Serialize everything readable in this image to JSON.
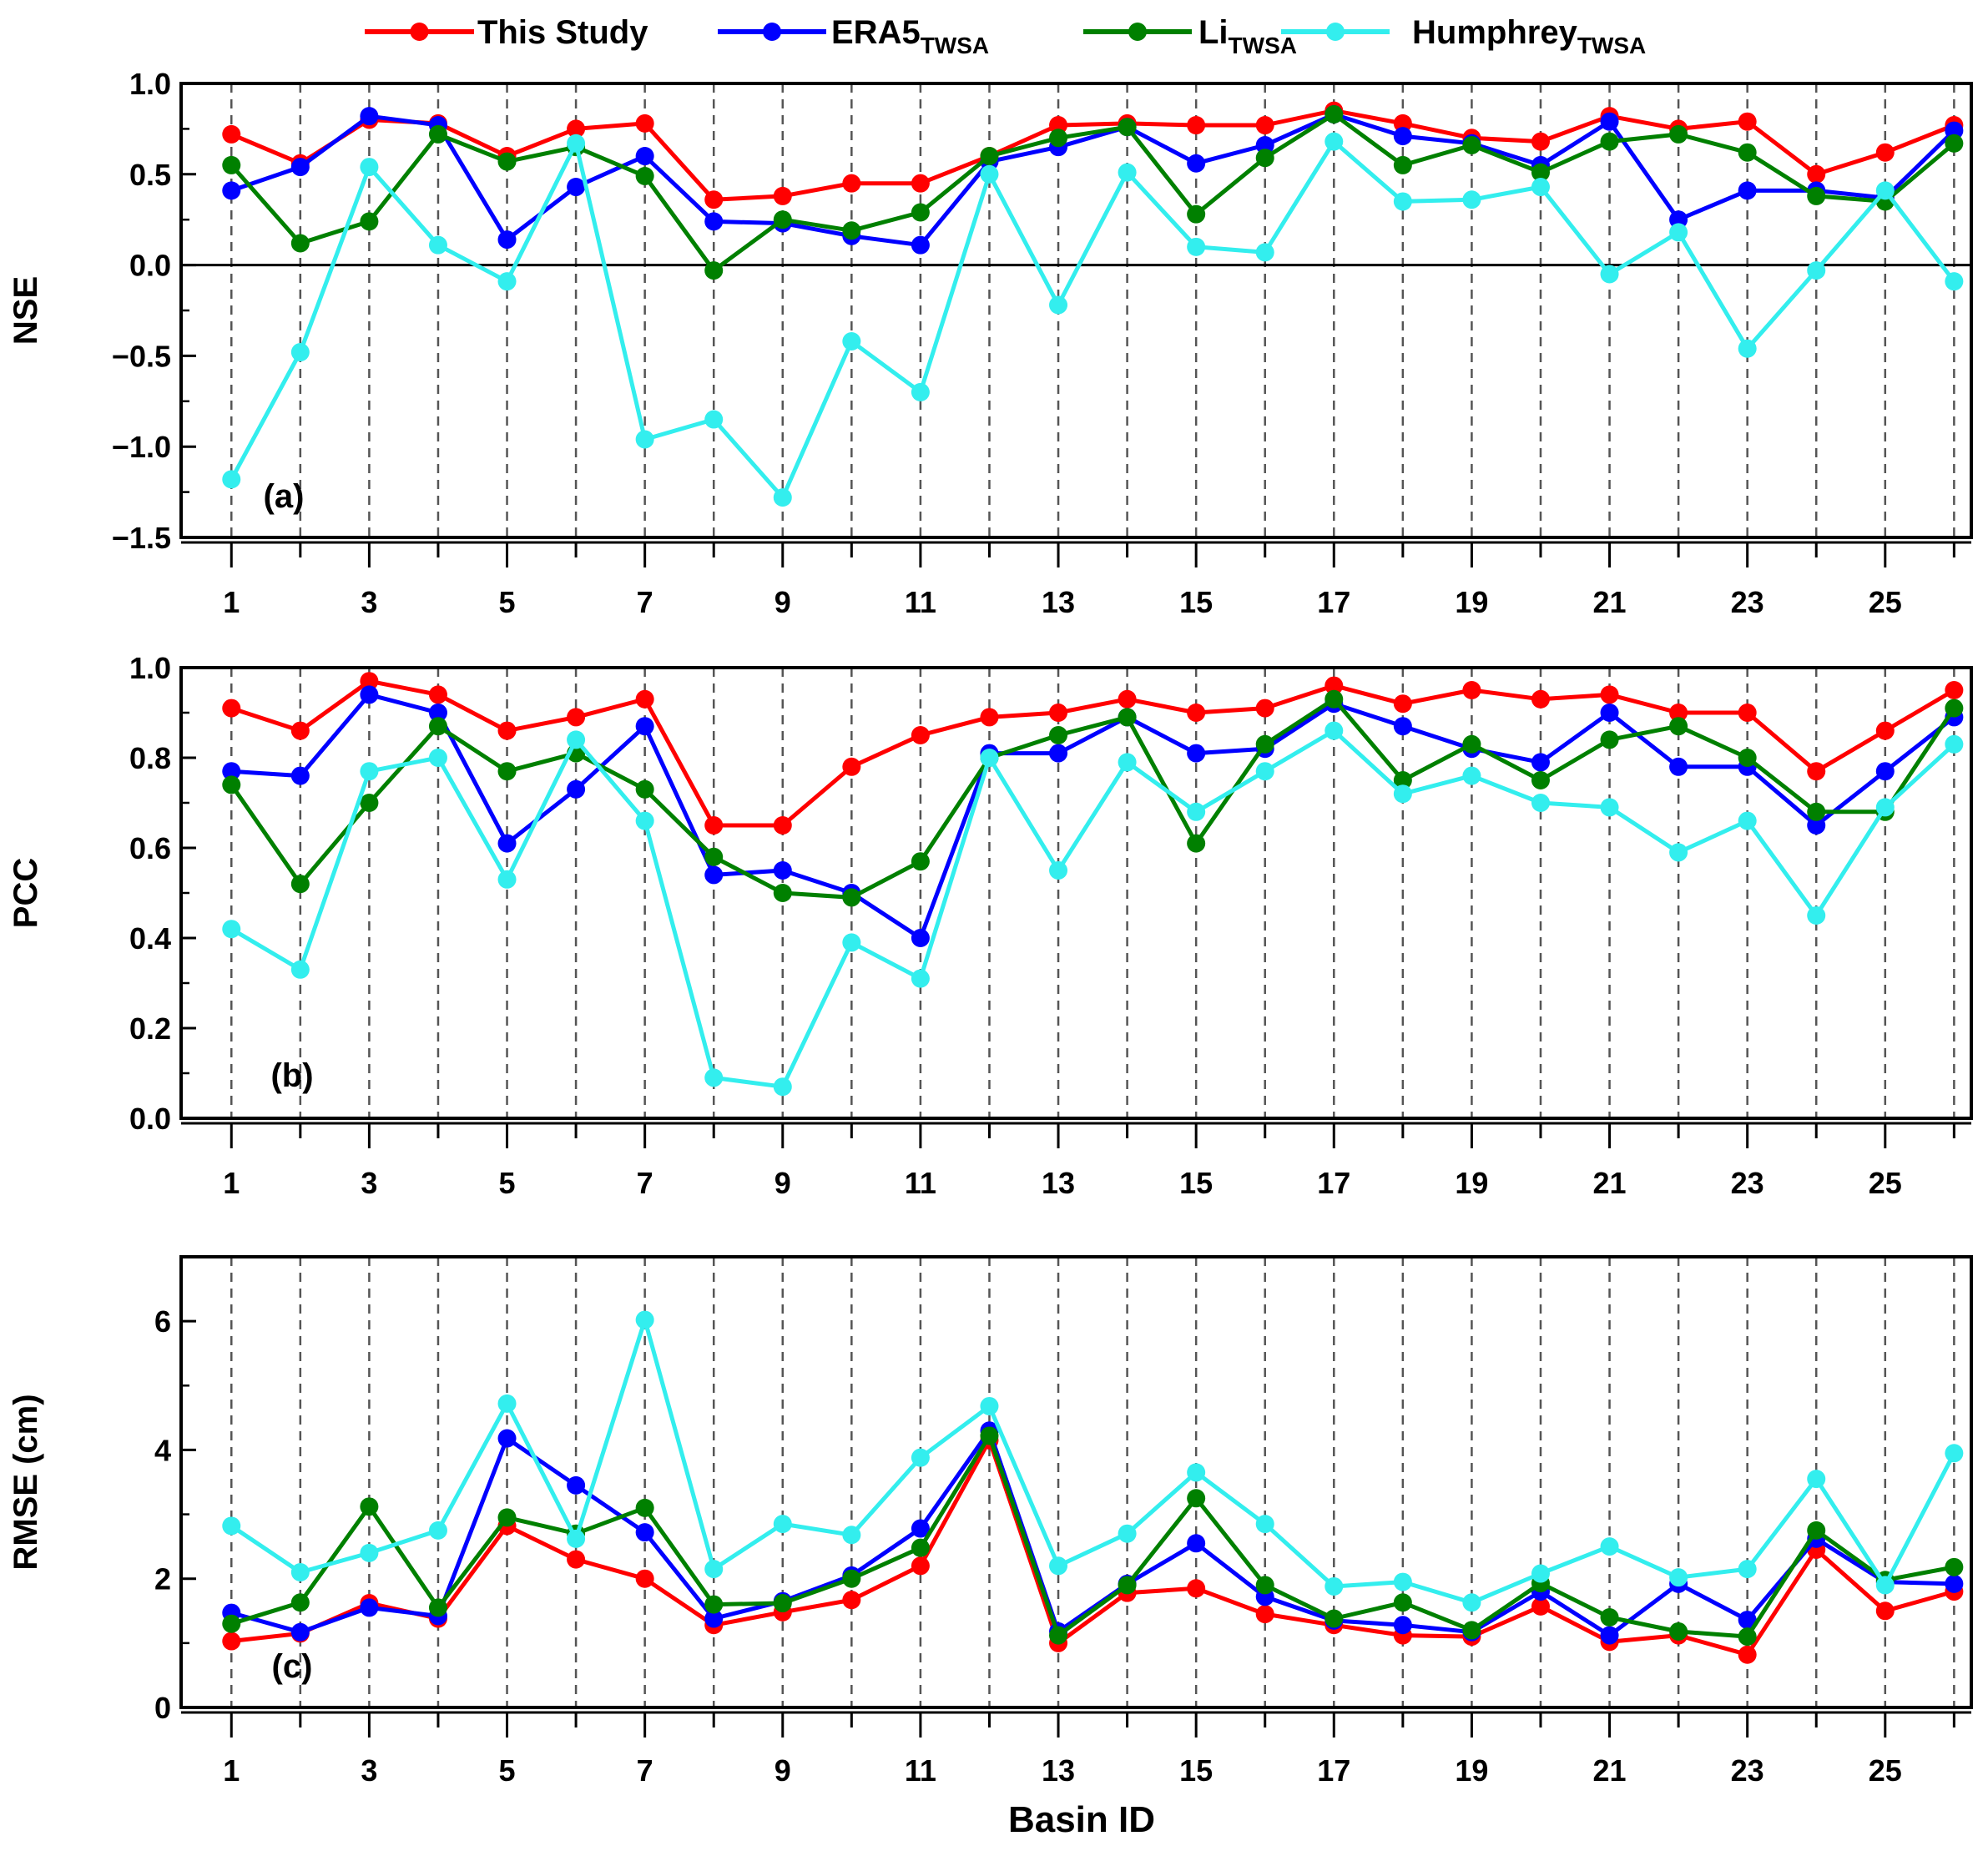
{
  "legend": [
    {
      "name": "This Study",
      "sub": "",
      "color": "#ff0000"
    },
    {
      "name": "ERA5",
      "sub": "TWSA",
      "color": "#0000ff"
    },
    {
      "name": "Li",
      "sub": "TWSA",
      "color": "#008000"
    },
    {
      "name": "Humphrey",
      "sub": "TWSA",
      "color": "#33eeee"
    }
  ],
  "xlabel": "Basin ID",
  "chart_data": [
    {
      "type": "line",
      "panel": "(a)",
      "ylabel": "NSE",
      "ylim": [
        -1.5,
        1.0
      ],
      "yticks": [
        "1.0",
        "0.5",
        "0.0",
        "−0.5",
        "−1.0",
        "−1.5"
      ],
      "ytick_values": [
        1.0,
        0.5,
        0.0,
        -0.5,
        -1.0,
        -1.5
      ],
      "zero_line": true,
      "x": [
        1,
        2,
        3,
        4,
        5,
        6,
        7,
        8,
        9,
        10,
        11,
        12,
        13,
        14,
        15,
        16,
        17,
        18,
        19,
        20,
        21,
        22,
        23,
        24,
        25,
        26
      ],
      "xticks": [
        1,
        3,
        5,
        7,
        9,
        11,
        13,
        15,
        17,
        19,
        21,
        23,
        25
      ],
      "series": [
        {
          "name": "This Study",
          "values": [
            0.72,
            0.56,
            0.8,
            0.78,
            0.6,
            0.75,
            0.78,
            0.36,
            0.38,
            0.45,
            0.45,
            0.6,
            0.77,
            0.78,
            0.77,
            0.77,
            0.85,
            0.78,
            0.7,
            0.68,
            0.82,
            0.75,
            0.79,
            0.5,
            0.62,
            0.77
          ]
        },
        {
          "name": "ERA5 TWSA",
          "values": [
            0.41,
            0.54,
            0.82,
            0.77,
            0.14,
            0.43,
            0.6,
            0.24,
            0.23,
            0.16,
            0.11,
            0.57,
            0.65,
            0.76,
            0.56,
            0.66,
            0.83,
            0.71,
            0.67,
            0.55,
            0.79,
            0.25,
            0.41,
            0.41,
            0.37,
            0.74
          ]
        },
        {
          "name": "Li TWSA",
          "values": [
            0.55,
            0.12,
            0.24,
            0.72,
            0.57,
            0.65,
            0.49,
            -0.03,
            0.25,
            0.19,
            0.29,
            0.6,
            0.7,
            0.76,
            0.28,
            0.59,
            0.83,
            0.55,
            0.66,
            0.51,
            0.68,
            0.72,
            0.62,
            0.38,
            0.35,
            0.67
          ]
        },
        {
          "name": "Humphrey TWSA",
          "values": [
            -1.18,
            -0.48,
            0.54,
            0.11,
            -0.09,
            0.67,
            -0.96,
            -0.85,
            -1.28,
            -0.42,
            -0.7,
            0.5,
            -0.22,
            0.51,
            0.1,
            0.07,
            0.68,
            0.35,
            0.36,
            0.43,
            -0.05,
            0.18,
            -0.46,
            -0.03,
            0.41,
            -0.09
          ]
        }
      ]
    },
    {
      "type": "line",
      "panel": "(b)",
      "ylabel": "PCC",
      "ylim": [
        0.0,
        1.0
      ],
      "yticks": [
        "1.0",
        "0.8",
        "0.6",
        "0.4",
        "0.2",
        "0.0"
      ],
      "ytick_values": [
        1.0,
        0.8,
        0.6,
        0.4,
        0.2,
        0.0
      ],
      "zero_line": false,
      "x": [
        1,
        2,
        3,
        4,
        5,
        6,
        7,
        8,
        9,
        10,
        11,
        12,
        13,
        14,
        15,
        16,
        17,
        18,
        19,
        20,
        21,
        22,
        23,
        24,
        25,
        26
      ],
      "xticks": [
        1,
        3,
        5,
        7,
        9,
        11,
        13,
        15,
        17,
        19,
        21,
        23,
        25
      ],
      "series": [
        {
          "name": "This Study",
          "values": [
            0.91,
            0.86,
            0.97,
            0.94,
            0.86,
            0.89,
            0.93,
            0.65,
            0.65,
            0.78,
            0.85,
            0.89,
            0.9,
            0.93,
            0.9,
            0.91,
            0.96,
            0.92,
            0.95,
            0.93,
            0.94,
            0.9,
            0.9,
            0.77,
            0.86,
            0.95
          ]
        },
        {
          "name": "ERA5 TWSA",
          "values": [
            0.77,
            0.76,
            0.94,
            0.9,
            0.61,
            0.73,
            0.87,
            0.54,
            0.55,
            0.5,
            0.4,
            0.81,
            0.81,
            0.89,
            0.81,
            0.82,
            0.92,
            0.87,
            0.82,
            0.79,
            0.9,
            0.78,
            0.78,
            0.65,
            0.77,
            0.89
          ]
        },
        {
          "name": "Li TWSA",
          "values": [
            0.74,
            0.52,
            0.7,
            0.87,
            0.77,
            0.81,
            0.73,
            0.58,
            0.5,
            0.49,
            0.57,
            0.8,
            0.85,
            0.89,
            0.61,
            0.83,
            0.93,
            0.75,
            0.83,
            0.75,
            0.84,
            0.87,
            0.8,
            0.68,
            0.68,
            0.91
          ]
        },
        {
          "name": "Humphrey TWSA",
          "values": [
            0.42,
            0.33,
            0.77,
            0.8,
            0.53,
            0.84,
            0.66,
            0.09,
            0.07,
            0.39,
            0.31,
            0.8,
            0.55,
            0.79,
            0.68,
            0.77,
            0.86,
            0.72,
            0.76,
            0.7,
            0.69,
            0.59,
            0.66,
            0.45,
            0.69,
            0.83
          ]
        }
      ]
    },
    {
      "type": "line",
      "panel": "(c)",
      "ylabel": "RMSE (cm)",
      "ylim": [
        0,
        7
      ],
      "yticks": [
        "6",
        "4",
        "2",
        "0"
      ],
      "ytick_values": [
        6,
        4,
        2,
        0
      ],
      "zero_line": false,
      "x": [
        1,
        2,
        3,
        4,
        5,
        6,
        7,
        8,
        9,
        10,
        11,
        12,
        13,
        14,
        15,
        16,
        17,
        18,
        19,
        20,
        21,
        22,
        23,
        24,
        25,
        26
      ],
      "xticks": [
        1,
        3,
        5,
        7,
        9,
        11,
        13,
        15,
        17,
        19,
        21,
        23,
        25
      ],
      "series": [
        {
          "name": "This Study",
          "values": [
            1.03,
            1.15,
            1.62,
            1.38,
            2.82,
            2.3,
            2.0,
            1.28,
            1.48,
            1.67,
            2.2,
            4.15,
            1.0,
            1.78,
            1.85,
            1.45,
            1.28,
            1.12,
            1.1,
            1.57,
            1.02,
            1.12,
            0.82,
            2.45,
            1.5,
            1.8
          ]
        },
        {
          "name": "ERA5 TWSA",
          "values": [
            1.47,
            1.17,
            1.55,
            1.42,
            4.18,
            3.45,
            2.72,
            1.38,
            1.65,
            2.05,
            2.78,
            4.3,
            1.18,
            1.92,
            2.55,
            1.72,
            1.35,
            1.28,
            1.17,
            1.8,
            1.12,
            1.92,
            1.36,
            2.62,
            1.95,
            1.92
          ]
        },
        {
          "name": "Li TWSA",
          "values": [
            1.3,
            1.63,
            3.12,
            1.55,
            2.95,
            2.7,
            3.1,
            1.6,
            1.62,
            2.0,
            2.48,
            4.22,
            1.12,
            1.9,
            3.25,
            1.9,
            1.38,
            1.63,
            1.2,
            1.93,
            1.4,
            1.18,
            1.1,
            2.75,
            1.98,
            2.18
          ]
        },
        {
          "name": "Humphrey TWSA",
          "values": [
            2.82,
            2.1,
            2.4,
            2.75,
            4.72,
            2.62,
            6.02,
            2.15,
            2.85,
            2.68,
            3.88,
            4.68,
            2.2,
            2.7,
            3.65,
            2.85,
            1.88,
            1.95,
            1.63,
            2.08,
            2.5,
            2.02,
            2.15,
            3.55,
            1.9,
            3.95
          ]
        }
      ]
    }
  ]
}
